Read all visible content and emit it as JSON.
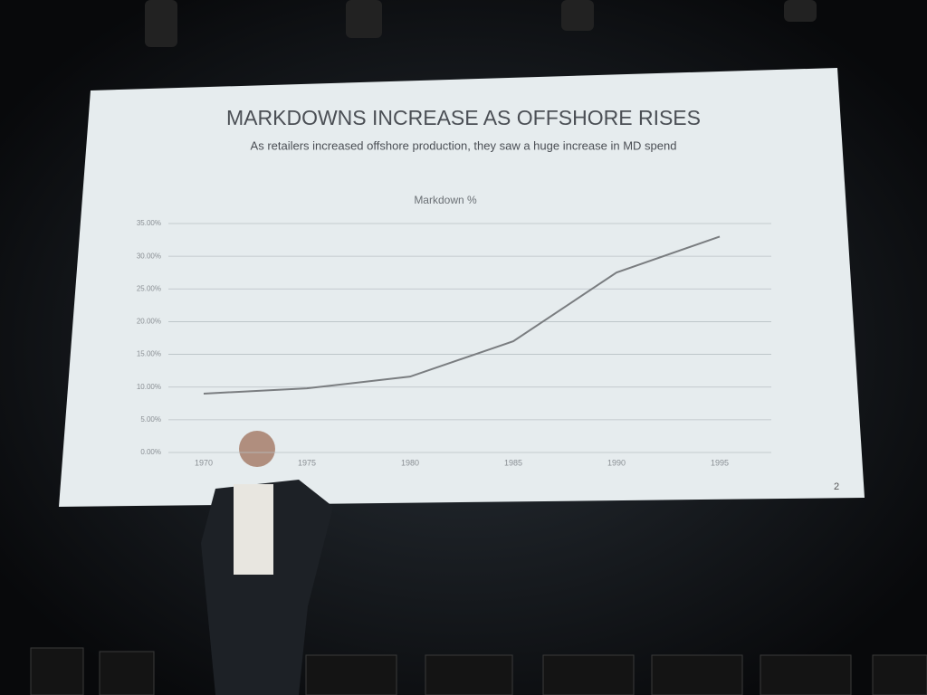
{
  "slide": {
    "title": "MARKDOWNS INCREASE AS OFFSHORE RISES",
    "subtitle": "As retailers increased offshore production, they saw a huge increase in MD spend",
    "page_number": "2"
  },
  "chart_data": {
    "type": "line",
    "title": "Markdown %",
    "categories": [
      "1970",
      "1975",
      "1980",
      "1985",
      "1990",
      "1995"
    ],
    "series": [
      {
        "name": "Markdown %",
        "color": "#7a7d80",
        "values": [
          9,
          9.8,
          11.6,
          17,
          27.5,
          33
        ]
      }
    ],
    "ylim": [
      0,
      35
    ],
    "yticks": [
      {
        "value": 0,
        "label": "0.00%"
      },
      {
        "value": 5,
        "label": "5.00%"
      },
      {
        "value": 10,
        "label": "10.00%"
      },
      {
        "value": 15,
        "label": "15.00%"
      },
      {
        "value": 20,
        "label": "20.00%"
      },
      {
        "value": 25,
        "label": "25.00%"
      },
      {
        "value": 30,
        "label": "30.00%"
      },
      {
        "value": 35,
        "label": "35.00%"
      }
    ],
    "grid": true
  }
}
